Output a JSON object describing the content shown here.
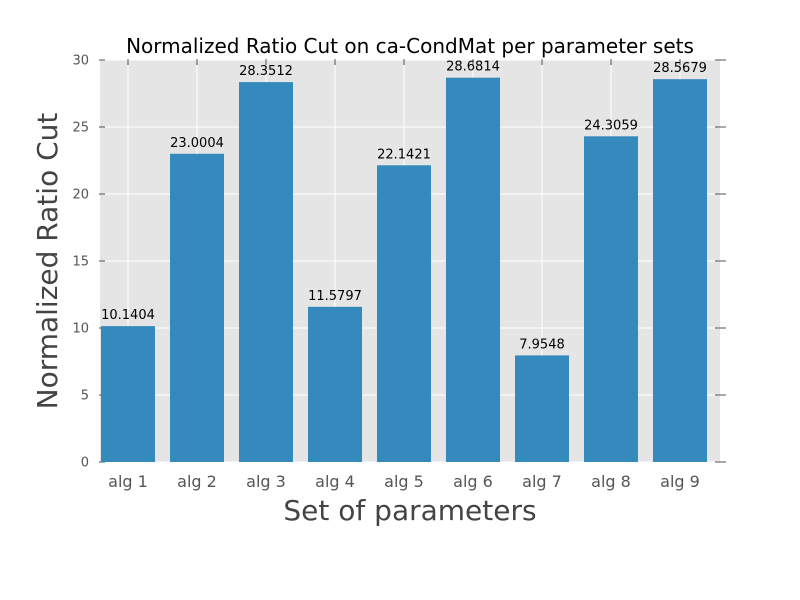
{
  "chart_data": {
    "type": "bar",
    "title": "Normalized Ratio Cut on ca-CondMat per parameter sets",
    "xlabel": "Set of parameters",
    "ylabel": "Normalized Ratio Cut",
    "categories": [
      "alg 1",
      "alg 2",
      "alg 3",
      "alg 4",
      "alg 5",
      "alg 6",
      "alg 7",
      "alg 8",
      "alg 9"
    ],
    "values": [
      10.1404,
      23.0004,
      28.3512,
      11.5797,
      22.1421,
      28.6814,
      7.9548,
      24.3059,
      28.5679
    ],
    "data_labels": [
      "10.1404",
      "23.0004",
      "28.3512",
      "11.5797",
      "22.1421",
      "28.6814",
      "7.9548",
      "24.3059",
      "28.5679"
    ],
    "ylim": [
      0,
      30
    ],
    "yticks": [
      0,
      5,
      10,
      15,
      20,
      25,
      30
    ],
    "grid": true,
    "colors": {
      "bar": "#348abd",
      "plot_background": "#e5e5e5",
      "grid": "#ffffff"
    }
  }
}
